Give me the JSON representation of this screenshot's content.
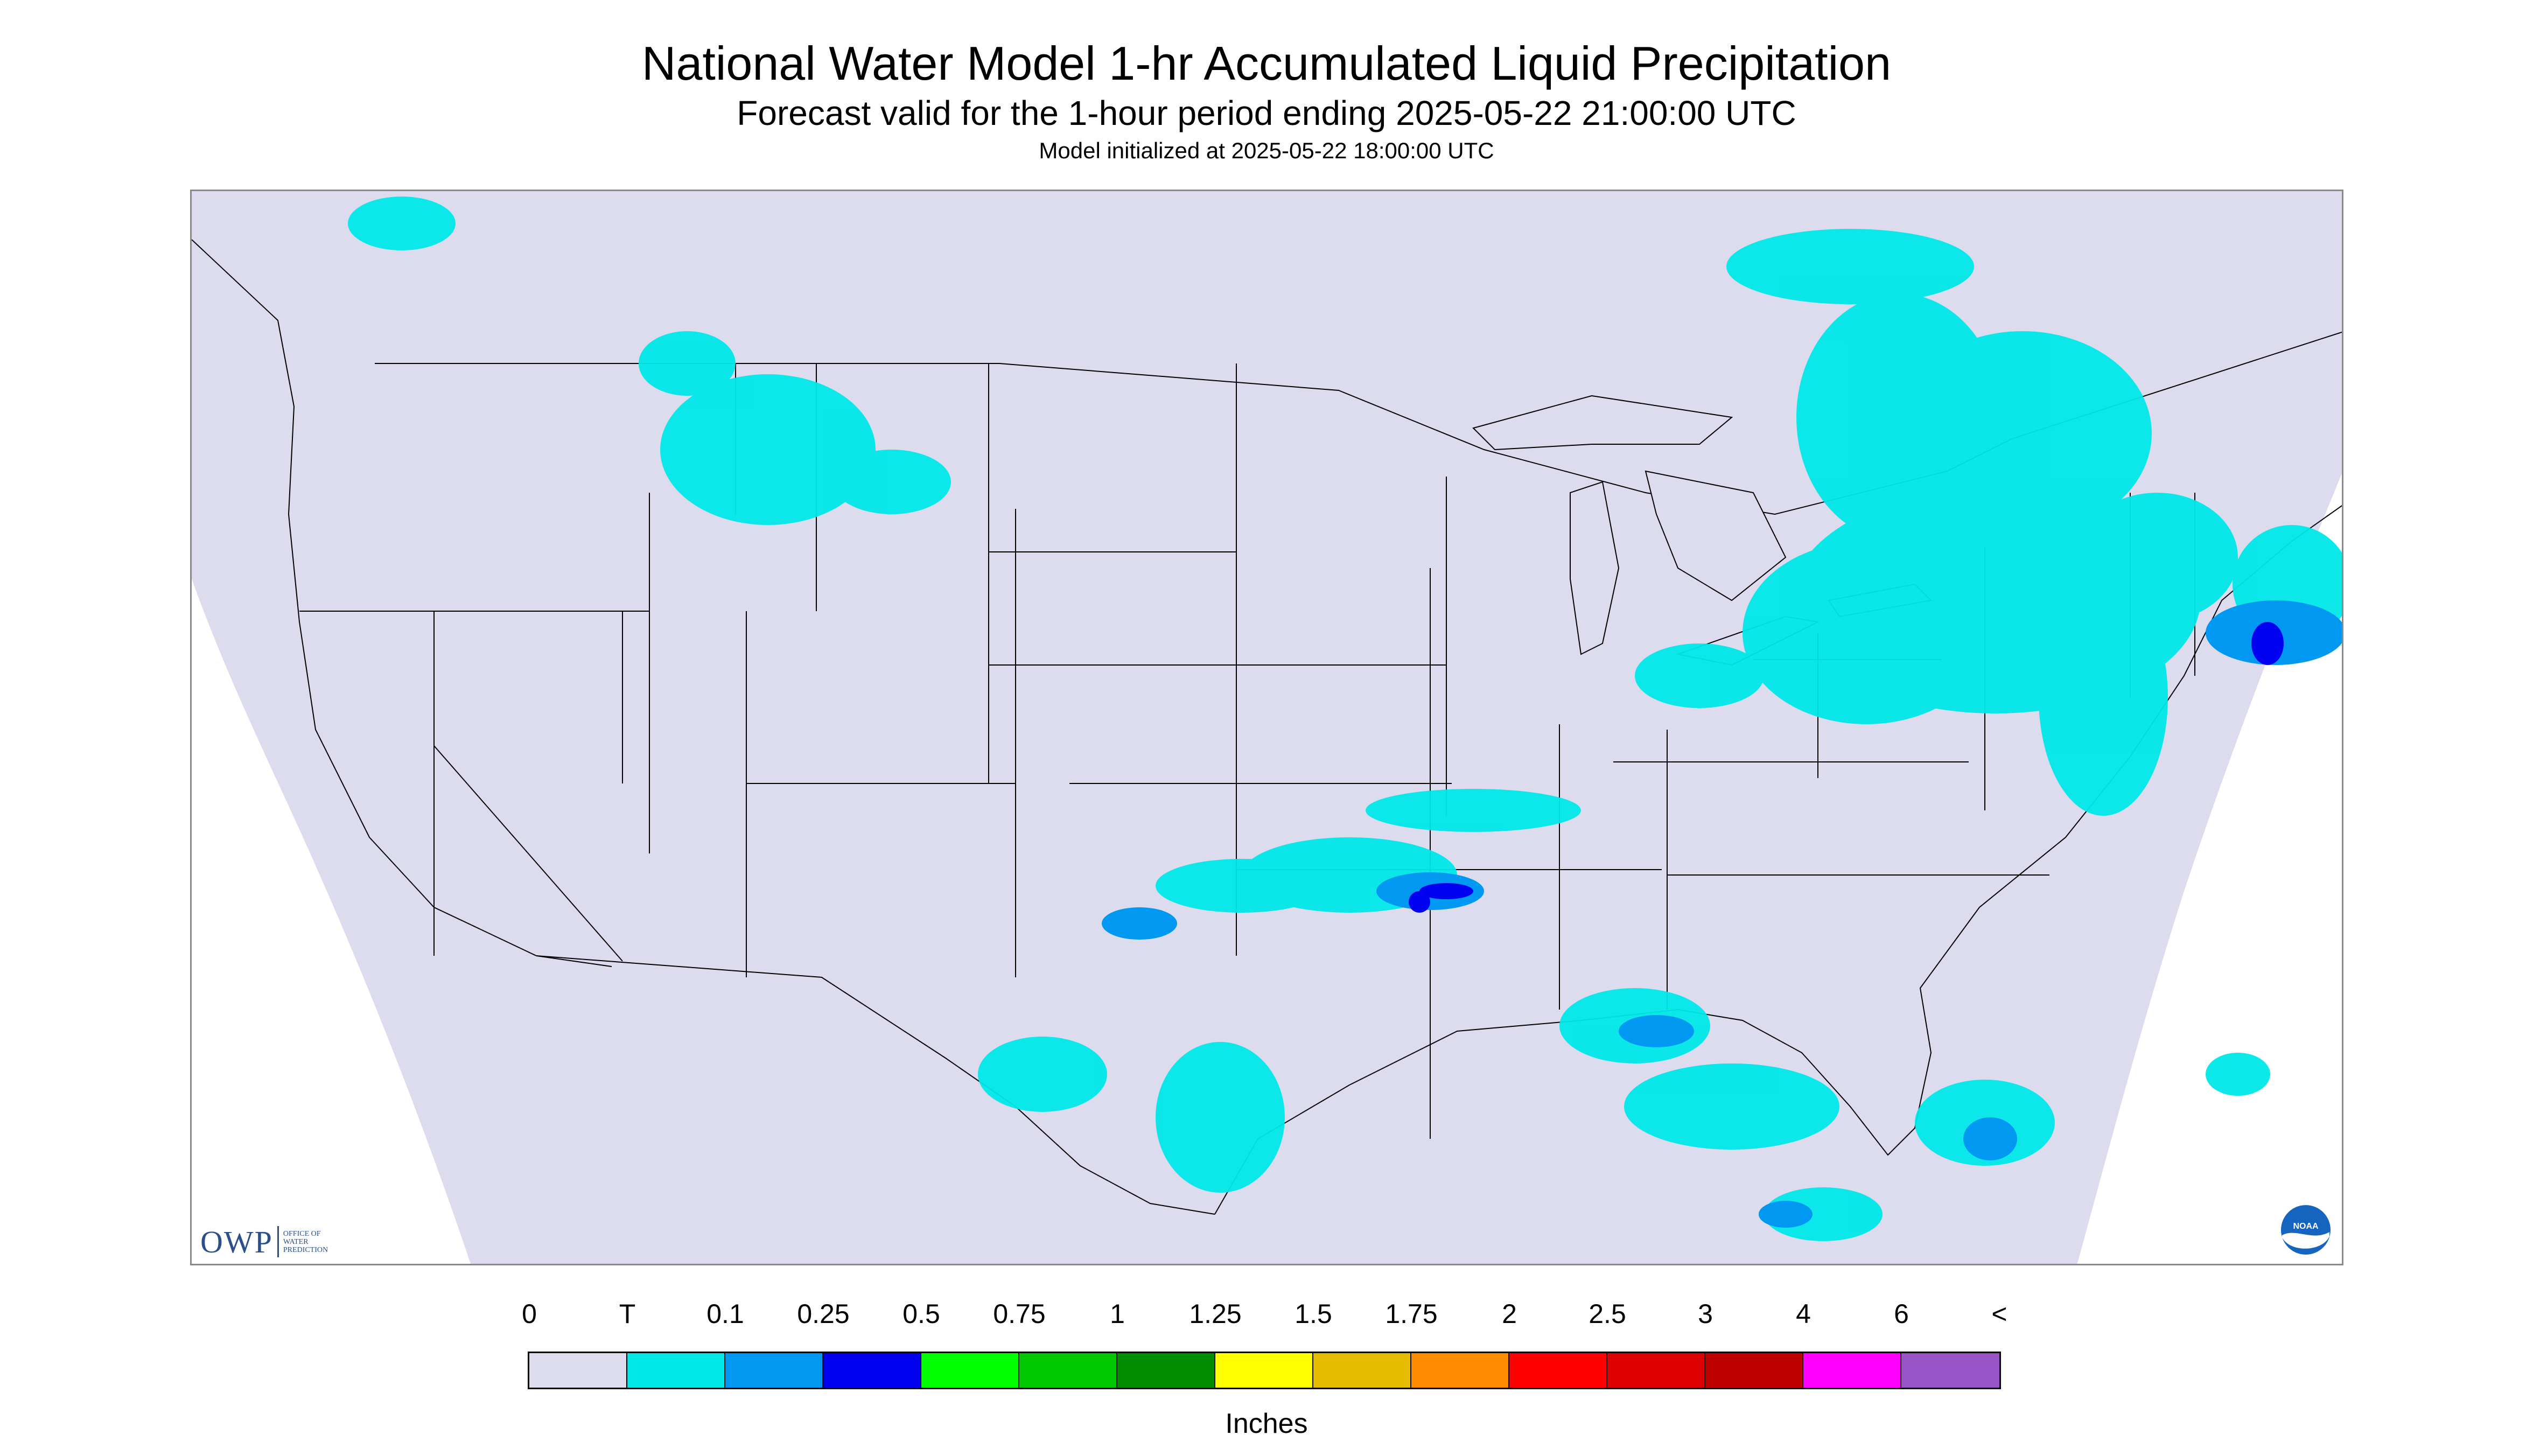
{
  "header": {
    "title": "National Water Model 1-hr Accumulated Liquid Precipitation",
    "subtitle": "Forecast valid for the 1-hour period ending 2025-05-22 21:00:00 UTC",
    "init_text": "Model initialized at 2025-05-22 18:00:00 UTC"
  },
  "logos": {
    "owp_text": "OWP",
    "owp_sub_1": "OFFICE OF",
    "owp_sub_2": "WATER",
    "owp_sub_3": "PREDICTION",
    "noaa_text": "NOAA"
  },
  "legend": {
    "labels": [
      "0",
      "T",
      "0.1",
      "0.25",
      "0.5",
      "0.75",
      "1",
      "1.25",
      "1.5",
      "1.75",
      "2",
      "2.5",
      "3",
      "4",
      "6",
      "<"
    ],
    "colors": [
      "#dcdcee",
      "#00e8e8",
      "#0098f0",
      "#0000f0",
      "#00ff00",
      "#00c800",
      "#008c00",
      "#ffff00",
      "#e6bc00",
      "#ff8c00",
      "#ff0000",
      "#dc0000",
      "#be0000",
      "#ff00ff",
      "#9854c6"
    ],
    "units": "Inches"
  },
  "map": {
    "domain_fill": "#dcdcee",
    "outside_fill": "#ffffff",
    "border_color": "#000000",
    "precip_colors": {
      "trace": "#00e8e8",
      "light": "#0098f0",
      "moderate": "#0000f0"
    }
  }
}
